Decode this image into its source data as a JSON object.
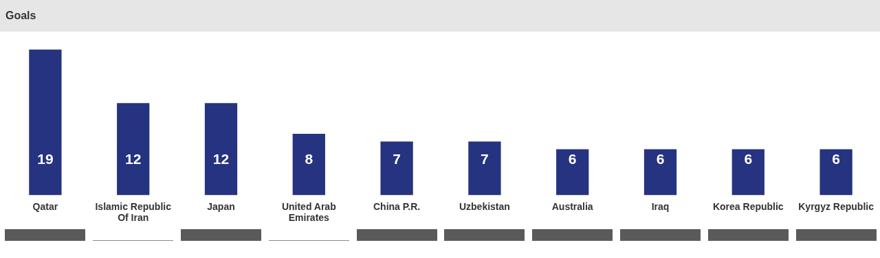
{
  "chart_data": {
    "type": "bar",
    "title": "Goals",
    "categories": [
      "Qatar",
      "Islamic Republic Of Iran",
      "Japan",
      "United Arab Emirates",
      "China P.R.",
      "Uzbekistan",
      "Australia",
      "Iraq",
      "Korea Republic",
      "Kyrgyz Republic"
    ],
    "values": [
      19,
      12,
      12,
      8,
      7,
      7,
      6,
      6,
      6,
      6
    ],
    "color": "#253380",
    "tick_labels": "x",
    "data_labels": true,
    "grid": false,
    "legend": false
  }
}
